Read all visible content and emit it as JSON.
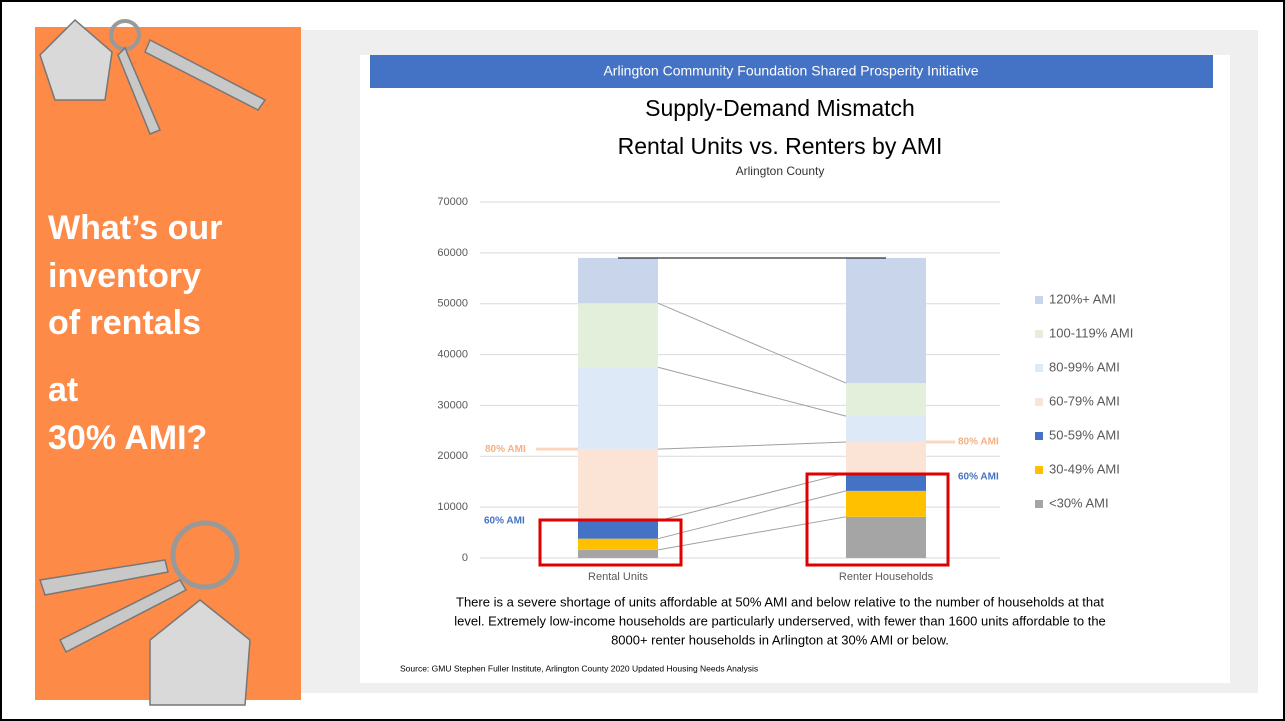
{
  "slide": {
    "heading": [
      "What’s our",
      "inventory",
      "of rentals",
      "at",
      "30% AMI?"
    ]
  },
  "chart_data": {
    "type": "bar",
    "stacked": true,
    "header": "Arlington Community Foundation Shared Prosperity Initiative",
    "title": [
      "Supply-Demand Mismatch",
      "Rental Units vs. Renters by AMI"
    ],
    "subtitle": "Arlington County",
    "categories": [
      "Rental Units",
      "Renter Households"
    ],
    "series": [
      {
        "name": "<30% AMI",
        "color": "#a5a5a5",
        "values": [
          1600,
          8100
        ]
      },
      {
        "name": "30-49% AMI",
        "color": "#ffc000",
        "values": [
          2200,
          5100
        ]
      },
      {
        "name": "50-59% AMI",
        "color": "#4472c4",
        "values": [
          3500,
          3500
        ]
      },
      {
        "name": "60-79% AMI",
        "color": "#fbe3d6",
        "values": [
          14100,
          6100
        ]
      },
      {
        "name": "80-99% AMI",
        "color": "#dde9f6",
        "values": [
          16100,
          5100
        ]
      },
      {
        "name": "100-119% AMI",
        "color": "#e3efda",
        "values": [
          12600,
          6500
        ]
      },
      {
        "name": "120%+ AMI",
        "color": "#c9d5ea",
        "values": [
          8900,
          24600
        ]
      }
    ],
    "ylim": [
      0,
      70000
    ],
    "yticks": [
      0,
      10000,
      20000,
      30000,
      40000,
      50000,
      60000,
      70000
    ],
    "grid": true,
    "legend": "right",
    "annotations": [
      {
        "text": "80% AMI",
        "color": "#f4b183"
      },
      {
        "text": "80% AMI",
        "color": "#f4b183"
      },
      {
        "text": "60% AMI",
        "color": "#4472c4"
      },
      {
        "text": "60% AMI",
        "color": "#4472c4"
      }
    ],
    "description": [
      "There is a severe shortage of units affordable at 50% AMI and below relative to the number of households at that",
      "level. Extremely low-income households are particularly underserved, with fewer than 1600 units affordable to the",
      "8000+ renter households in Arlington at 30% AMI or below."
    ],
    "source": "Source: GMU Stephen Fuller Institute, Arlington County 2020 Updated Housing Needs Analysis"
  }
}
